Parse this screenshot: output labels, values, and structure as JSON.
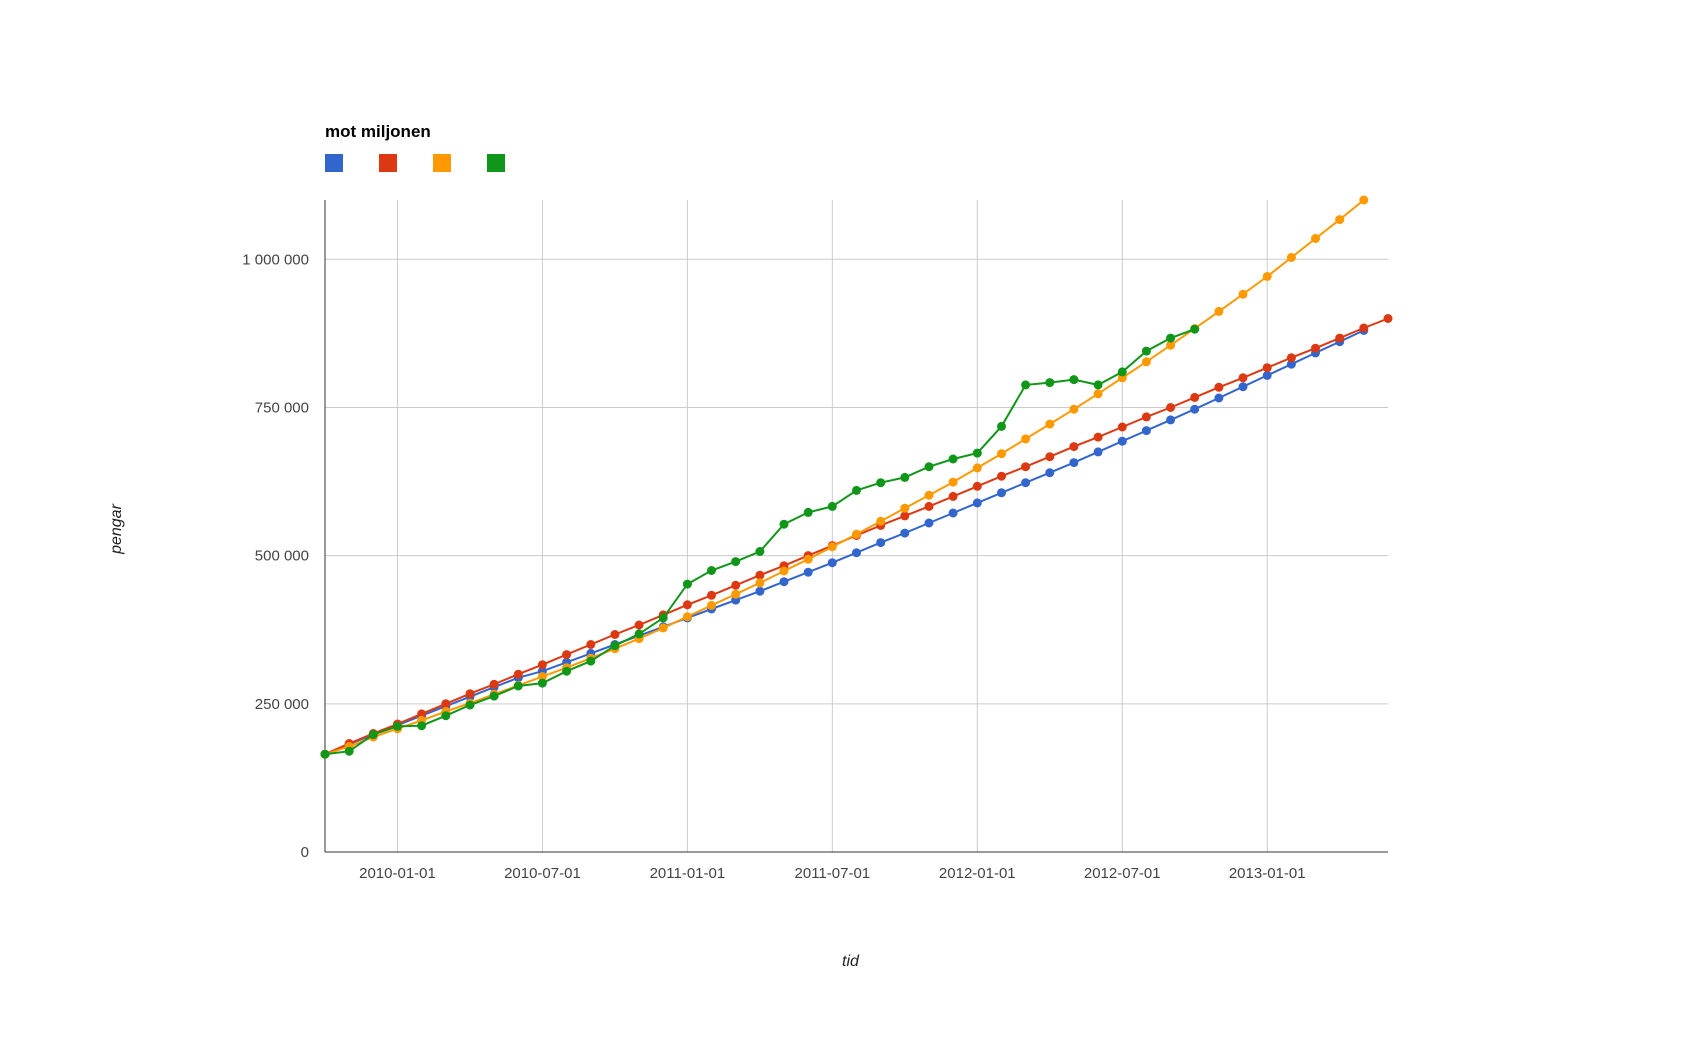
{
  "chart_data": {
    "type": "line",
    "title": "mot miljonen",
    "xlabel": "tid",
    "ylabel": "pengar",
    "x_ticks": [
      "2010-01-01",
      "2010-07-01",
      "2011-01-01",
      "2011-07-01",
      "2012-01-01",
      "2012-07-01",
      "2013-01-01"
    ],
    "y_ticks": [
      "0",
      "250 000",
      "500 000",
      "750 000",
      "1 000 000"
    ],
    "ylim": [
      0,
      1100000
    ],
    "xlim": [
      "2009-10-01",
      "2013-06-01"
    ],
    "grid": true,
    "legend_position": "top-left",
    "series": [
      {
        "color": "#3366cc",
        "x_start": "2009-10-01",
        "values": [
          165000,
          182000,
          198000,
          214000,
          230000,
          246000,
          262000,
          278000,
          294000,
          305000,
          320000,
          335000,
          350000,
          365000,
          380000,
          395000,
          410000,
          425000,
          440000,
          456000,
          472000,
          488000,
          505000,
          522000,
          538000,
          555000,
          572000,
          589000,
          606000,
          623000,
          640000,
          657000,
          675000,
          693000,
          711000,
          729000,
          747000,
          766000,
          785000,
          804000,
          823000,
          842000,
          861000,
          880000
        ]
      },
      {
        "color": "#dc3912",
        "x_start": "2009-10-01",
        "values": [
          165000,
          183000,
          200000,
          216000,
          233000,
          250000,
          267000,
          283000,
          300000,
          316000,
          333000,
          350000,
          367000,
          383000,
          400000,
          417000,
          433000,
          450000,
          467000,
          483000,
          500000,
          517000,
          534000,
          551000,
          567000,
          583000,
          600000,
          617000,
          634000,
          650000,
          667000,
          684000,
          700000,
          717000,
          734000,
          750000,
          767000,
          784000,
          800000,
          817000,
          834000,
          850000,
          867000,
          884000,
          900000
        ]
      },
      {
        "color": "#ff9900",
        "x_start": "2009-10-01",
        "values": [
          165000,
          178000,
          194000,
          208000,
          222000,
          237000,
          251000,
          266000,
          281000,
          296000,
          311000,
          327000,
          343000,
          360000,
          378000,
          397000,
          416000,
          435000,
          454000,
          474000,
          494000,
          515000,
          536000,
          558000,
          580000,
          602000,
          624000,
          648000,
          672000,
          697000,
          722000,
          747000,
          773000,
          800000,
          827000,
          855000,
          883000,
          912000,
          941000,
          971000,
          1003000,
          1035000,
          1067000,
          1100000
        ]
      },
      {
        "color": "#109618",
        "x_start": "2009-10-01",
        "values": [
          165000,
          170000,
          198000,
          212000,
          213000,
          230000,
          248000,
          263000,
          280000,
          285000,
          305000,
          322000,
          348000,
          368000,
          395000,
          452000,
          475000,
          490000,
          507000,
          553000,
          573000,
          583000,
          610000,
          623000,
          632000,
          650000,
          663000,
          673000,
          718000,
          788000,
          792000,
          797000,
          788000,
          810000,
          845000,
          867000,
          882000
        ]
      }
    ]
  }
}
